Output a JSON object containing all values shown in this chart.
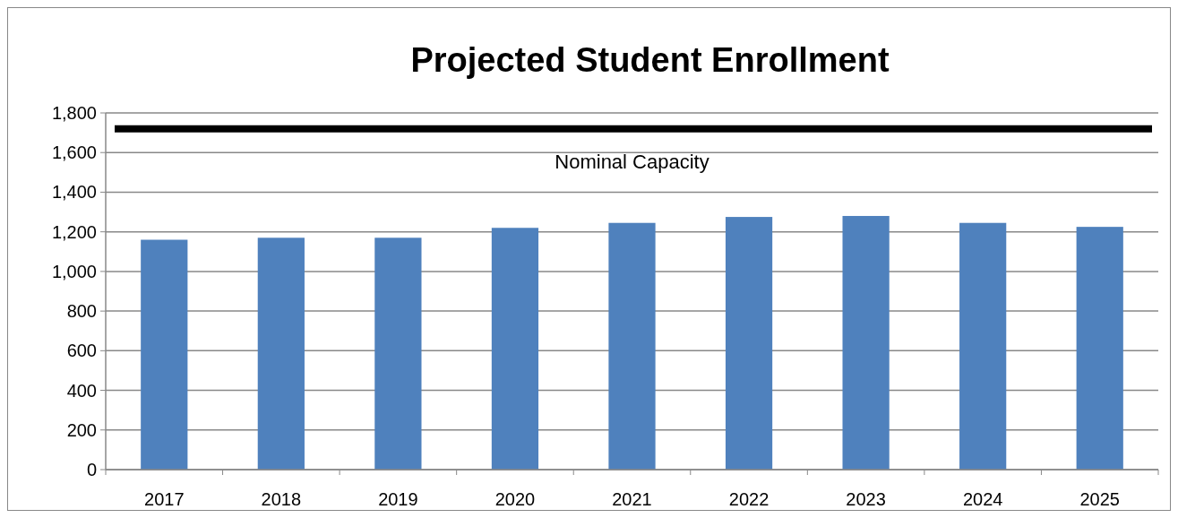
{
  "chart_data": {
    "type": "bar",
    "title": "Projected Student Enrollment",
    "categories": [
      "2017",
      "2018",
      "2019",
      "2020",
      "2021",
      "2022",
      "2023",
      "2024",
      "2025"
    ],
    "values": [
      1160,
      1170,
      1170,
      1220,
      1245,
      1275,
      1280,
      1245,
      1225
    ],
    "color": "#4f81bd",
    "ylim": [
      0,
      1800
    ],
    "yticks": [
      {
        "value": 0,
        "label": "0"
      },
      {
        "value": 200,
        "label": "200"
      },
      {
        "value": 400,
        "label": "400"
      },
      {
        "value": 600,
        "label": "600"
      },
      {
        "value": 800,
        "label": "800"
      },
      {
        "value": 1000,
        "label": "1,000"
      },
      {
        "value": 1200,
        "label": "1,200"
      },
      {
        "value": 1400,
        "label": "1,400"
      },
      {
        "value": 1600,
        "label": "1,600"
      },
      {
        "value": 1800,
        "label": "1,800"
      }
    ],
    "grid": "y",
    "ref_lines": [
      {
        "axis": "y",
        "value": 1720,
        "label": "Nominal Capacity",
        "color": "#000000"
      }
    ]
  }
}
